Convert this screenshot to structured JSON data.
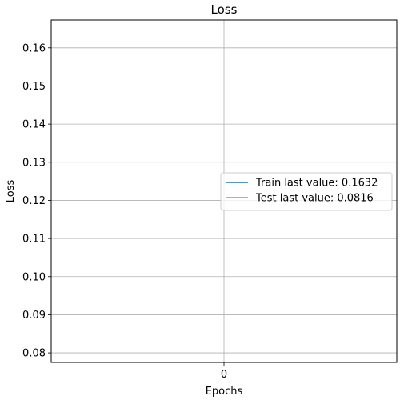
{
  "chart_data": {
    "type": "line",
    "title": "Loss",
    "xlabel": "Epochs",
    "ylabel": "Loss",
    "x_ticks": [
      0
    ],
    "y_ticks": [
      0.08,
      0.09,
      0.1,
      0.11,
      0.12,
      0.13,
      0.14,
      0.15,
      0.16
    ],
    "y_tick_labels": [
      "0.08",
      "0.09",
      "0.10",
      "0.11",
      "0.12",
      "0.13",
      "0.14",
      "0.15",
      "0.16"
    ],
    "xlim": [
      -0.055,
      0.055
    ],
    "ylim": [
      0.0775,
      0.1673
    ],
    "grid": true,
    "legend_position": "center-right",
    "series": [
      {
        "name": "Train last value: 0.1632",
        "color": "#1f77b4",
        "x": [
          0
        ],
        "y": [
          0.1632
        ]
      },
      {
        "name": "Test last value: 0.0816",
        "color": "#ff7f0e",
        "x": [
          0
        ],
        "y": [
          0.0816
        ]
      }
    ]
  }
}
